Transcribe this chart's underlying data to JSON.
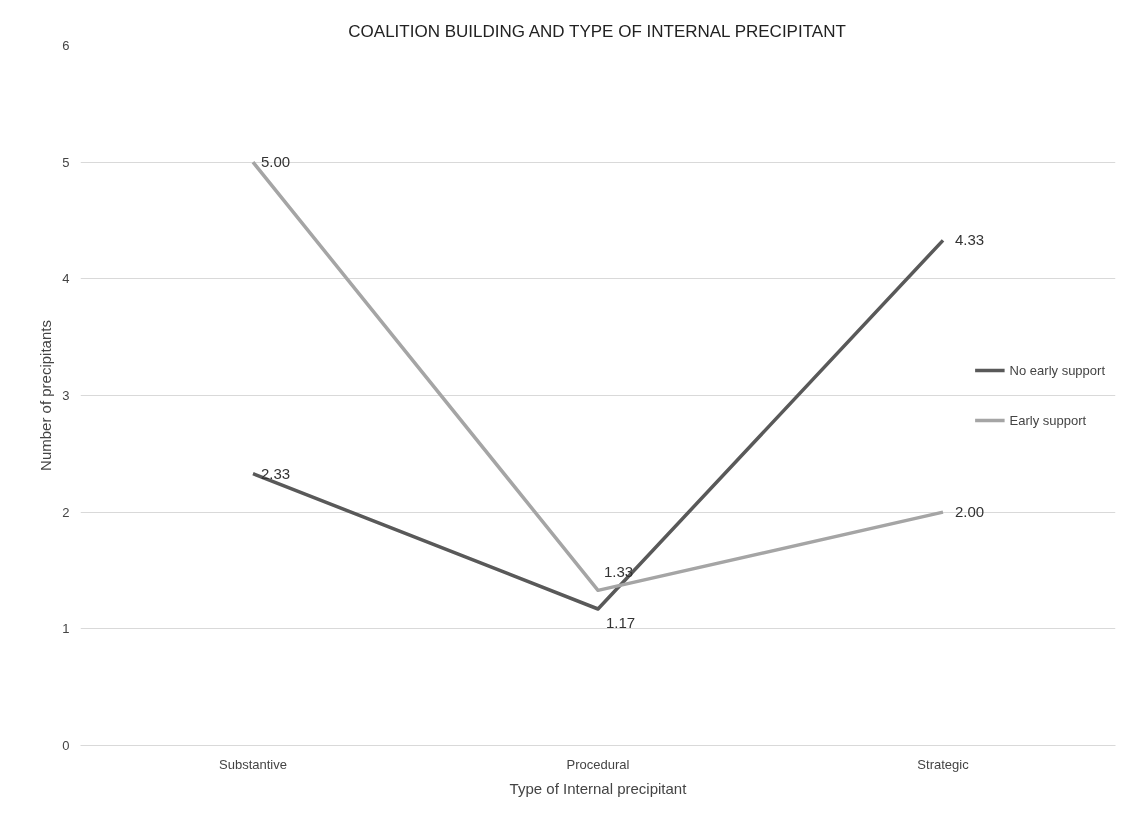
{
  "chart_data": {
    "type": "line",
    "title": "COALITION BUILDING AND TYPE OF INTERNAL PRECIPITANT",
    "xlabel": "Type of Internal precipitant",
    "ylabel": "Number of precipitants",
    "categories": [
      "Substantive",
      "Procedural",
      "Strategic"
    ],
    "series": [
      {
        "name": "No early support",
        "color": "#595959",
        "values": [
          2.33,
          1.17,
          4.33
        ],
        "value_labels": [
          "2.33",
          "1.17",
          "4.33"
        ]
      },
      {
        "name": "Early support",
        "color": "#a5a5a5",
        "values": [
          5.0,
          1.33,
          2.0
        ],
        "value_labels": [
          "5.00",
          "1.33",
          "2.00"
        ]
      }
    ],
    "ylim": [
      0,
      6
    ],
    "yticks": [
      0,
      1,
      2,
      3,
      4,
      5,
      6
    ],
    "grid": "y",
    "legend": "right",
    "marker": "none",
    "line_style": "solid"
  }
}
